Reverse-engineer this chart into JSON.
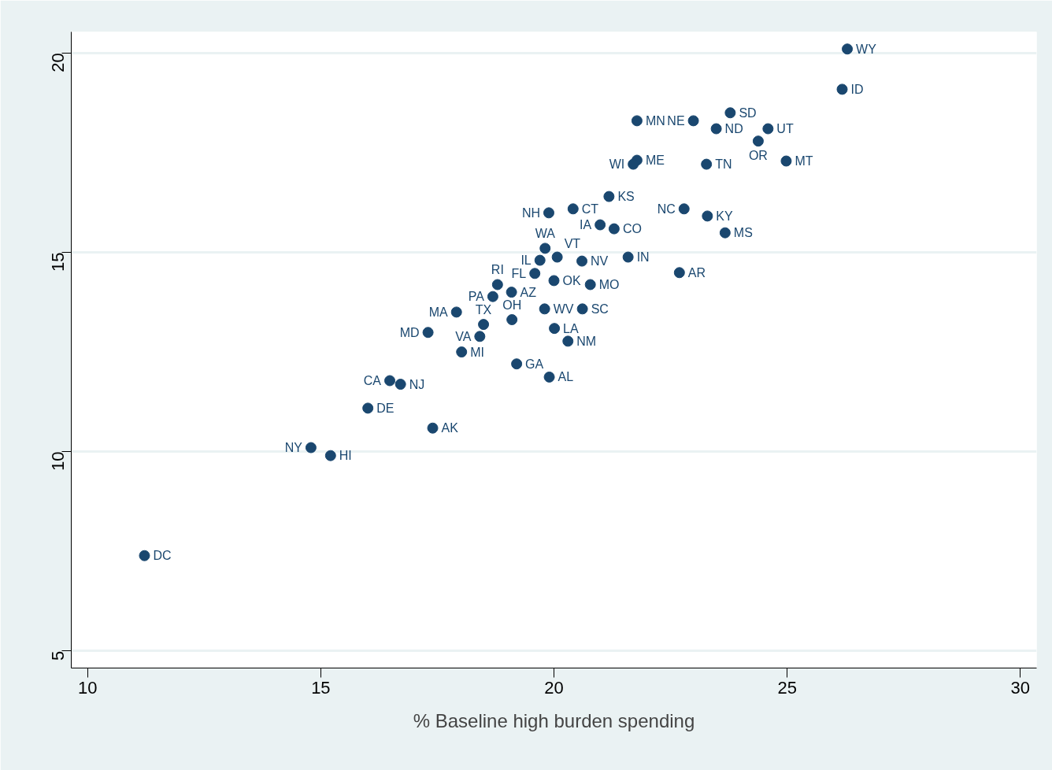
{
  "chart_data": {
    "type": "scatter",
    "xlabel": "% Baseline high burden spending",
    "x": [
      26.29,
      26.18,
      23.78,
      21.78,
      22.99,
      23.48,
      24.59,
      24.38,
      21.78,
      21.7,
      23.27,
      24.98,
      21.18,
      22.79,
      23.29,
      23.67,
      20.41,
      19.89,
      20.99,
      21.29,
      19.81,
      20.07,
      19.7,
      20.6,
      19.59,
      20.0,
      20.78,
      21.59,
      22.69,
      18.79,
      18.69,
      19.09,
      17.91,
      18.49,
      19.1,
      18.41,
      17.3,
      18.02,
      19.8,
      20.61,
      20.01,
      20.3,
      19.2,
      19.9,
      16.48,
      16.71,
      16.01,
      17.4,
      14.79,
      15.21,
      11.22
    ],
    "values": [
      20.1,
      19.09,
      18.5,
      18.3,
      18.3,
      18.1,
      18.1,
      17.79,
      17.31,
      17.21,
      17.21,
      17.29,
      16.4,
      16.09,
      15.91,
      15.49,
      16.09,
      15.99,
      15.69,
      15.59,
      15.1,
      14.88,
      14.8,
      14.78,
      14.47,
      14.29,
      14.19,
      14.88,
      14.49,
      14.19,
      13.89,
      14.0,
      13.5,
      13.19,
      13.31,
      12.89,
      12.99,
      12.5,
      13.58,
      13.58,
      13.09,
      12.77,
      12.2,
      11.87,
      11.78,
      11.69,
      11.09,
      10.59,
      10.1,
      9.9,
      7.39
    ],
    "color": "#1a476f",
    "marker": "circle",
    "annotations": [
      {
        "text": "WY",
        "x": 26.29,
        "y": 20.1
      },
      {
        "text": "ID",
        "x": 26.18,
        "y": 19.09
      },
      {
        "text": "SD",
        "x": 23.78,
        "y": 18.5
      },
      {
        "text": "MN",
        "x": 21.78,
        "y": 18.3
      },
      {
        "text": "NE",
        "x": 22.99,
        "y": 18.3
      },
      {
        "text": "ND",
        "x": 23.48,
        "y": 18.1
      },
      {
        "text": "UT",
        "x": 24.59,
        "y": 18.1
      },
      {
        "text": "OR",
        "x": 24.38,
        "y": 17.79
      },
      {
        "text": "ME",
        "x": 21.78,
        "y": 17.31
      },
      {
        "text": "WI",
        "x": 21.7,
        "y": 17.21
      },
      {
        "text": "TN",
        "x": 23.27,
        "y": 17.21
      },
      {
        "text": "MT",
        "x": 24.98,
        "y": 17.29
      },
      {
        "text": "KS",
        "x": 21.18,
        "y": 16.4
      },
      {
        "text": "NC",
        "x": 22.79,
        "y": 16.09
      },
      {
        "text": "KY",
        "x": 23.29,
        "y": 15.91
      },
      {
        "text": "MS",
        "x": 23.67,
        "y": 15.49
      },
      {
        "text": "CT",
        "x": 20.41,
        "y": 16.09
      },
      {
        "text": "NH",
        "x": 19.89,
        "y": 15.99
      },
      {
        "text": "IA",
        "x": 20.99,
        "y": 15.69
      },
      {
        "text": "CO",
        "x": 21.29,
        "y": 15.59
      },
      {
        "text": "WA",
        "x": 19.81,
        "y": 15.1
      },
      {
        "text": "VT",
        "x": 20.07,
        "y": 14.88
      },
      {
        "text": "IL",
        "x": 19.7,
        "y": 14.8
      },
      {
        "text": "NV",
        "x": 20.6,
        "y": 14.78
      },
      {
        "text": "FL",
        "x": 19.59,
        "y": 14.47
      },
      {
        "text": "OK",
        "x": 20.0,
        "y": 14.29
      },
      {
        "text": "MO",
        "x": 20.78,
        "y": 14.19
      },
      {
        "text": "IN",
        "x": 21.59,
        "y": 14.88
      },
      {
        "text": "AR",
        "x": 22.69,
        "y": 14.49
      },
      {
        "text": "RI",
        "x": 18.79,
        "y": 14.19
      },
      {
        "text": "PA",
        "x": 18.69,
        "y": 13.89
      },
      {
        "text": "AZ",
        "x": 19.09,
        "y": 14.0
      },
      {
        "text": "MA",
        "x": 17.91,
        "y": 13.5
      },
      {
        "text": "TX",
        "x": 18.49,
        "y": 13.19
      },
      {
        "text": "OH",
        "x": 19.1,
        "y": 13.31
      },
      {
        "text": "VA",
        "x": 18.41,
        "y": 12.89
      },
      {
        "text": "MD",
        "x": 17.3,
        "y": 12.99
      },
      {
        "text": "MI",
        "x": 18.02,
        "y": 12.5
      },
      {
        "text": "WV",
        "x": 19.8,
        "y": 13.58
      },
      {
        "text": "SC",
        "x": 20.61,
        "y": 13.58
      },
      {
        "text": "LA",
        "x": 20.01,
        "y": 13.09
      },
      {
        "text": "NM",
        "x": 20.3,
        "y": 12.77
      },
      {
        "text": "GA",
        "x": 19.2,
        "y": 12.2
      },
      {
        "text": "AL",
        "x": 19.9,
        "y": 11.87
      },
      {
        "text": "CA",
        "x": 16.48,
        "y": 11.78
      },
      {
        "text": "NJ",
        "x": 16.71,
        "y": 11.69
      },
      {
        "text": "DE",
        "x": 16.01,
        "y": 11.09
      },
      {
        "text": "AK",
        "x": 17.4,
        "y": 10.59
      },
      {
        "text": "NY",
        "x": 14.79,
        "y": 10.1
      },
      {
        "text": "HI",
        "x": 15.21,
        "y": 9.9
      },
      {
        "text": "DC",
        "x": 11.22,
        "y": 7.39
      }
    ],
    "xlim": [
      9.65,
      30.35
    ],
    "ylim": [
      4.57,
      20.53
    ],
    "xticks": [
      10,
      15,
      20,
      25,
      30
    ],
    "yticks": [
      5,
      10,
      15,
      20
    ],
    "grid": "y"
  }
}
